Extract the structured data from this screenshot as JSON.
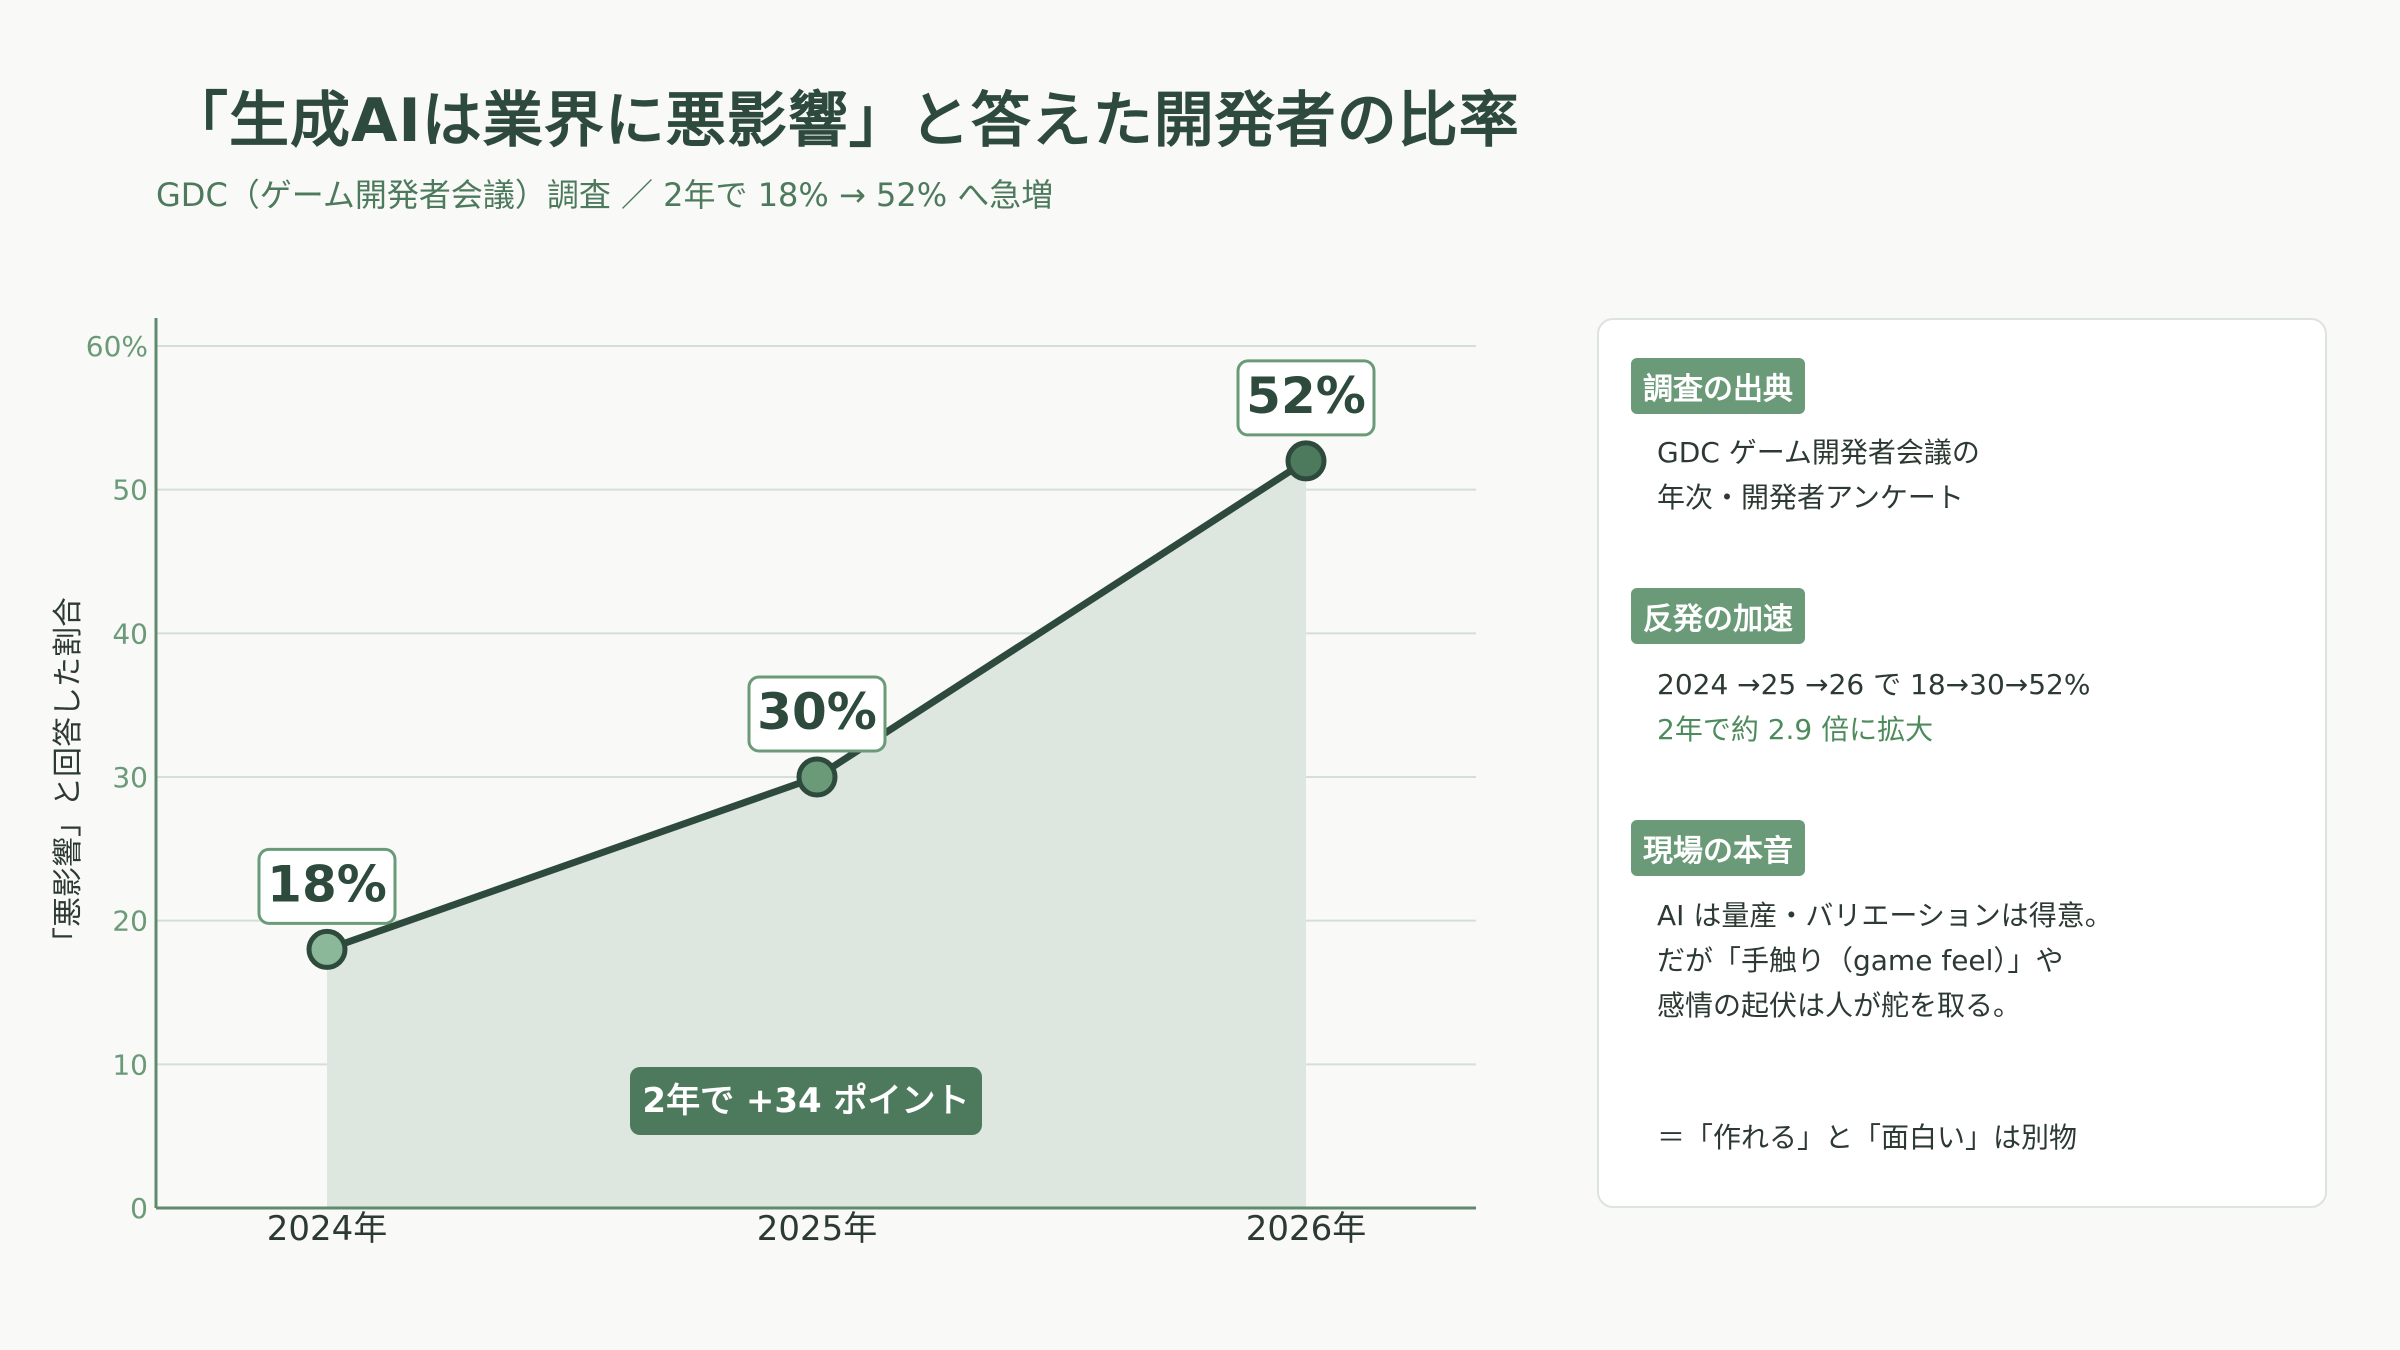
{
  "header": {
    "title": "「生成AIは業界に悪影響」と答えた開発者の比率",
    "subtitle": "GDC（ゲーム開発者会議）調査 ／ 2年で 18% → 52% へ急増"
  },
  "chart_data": {
    "type": "area",
    "categories": [
      "2024年",
      "2025年",
      "2026年"
    ],
    "values": [
      18,
      30,
      52
    ],
    "data_labels": [
      "18%",
      "30%",
      "52%"
    ],
    "ylabel": "「悪影響」と回答した割合",
    "ylim": [
      0,
      60
    ],
    "yticks": [
      {
        "value": 0,
        "label": "0"
      },
      {
        "value": 10,
        "label": "10"
      },
      {
        "value": 20,
        "label": "20"
      },
      {
        "value": 30,
        "label": "30"
      },
      {
        "value": 40,
        "label": "40"
      },
      {
        "value": 50,
        "label": "50"
      },
      {
        "value": 60,
        "label": "60%"
      }
    ],
    "grid": true,
    "annotation": "2年で +34 ポイント",
    "colors": {
      "line": "#2d4a3c",
      "area": "#dde6df",
      "grid": "#d4e0d7",
      "axis": "#5f8a6c",
      "tick_text": "#6a9a78",
      "marker_start": "#8ab898",
      "marker_mid": "#6a9a78",
      "marker_end": "#4d7a5c",
      "annotation_bg": "#4d7a5c"
    }
  },
  "panel": {
    "sections": [
      {
        "heading": "調査の出典",
        "lines": [
          "GDC ゲーム開発者会議の",
          "年次・開発者アンケート"
        ]
      },
      {
        "heading": "反発の加速",
        "lines": [
          "2024 →25 →26 で 18→30→52%"
        ],
        "highlight": "2年で約 2.9 倍に拡大"
      },
      {
        "heading": "現場の本音",
        "lines": [
          "AI は量産・バリエーションは得意。",
          "だが「手触り（game feel）」や",
          "感情の起伏は人が舵を取る。"
        ]
      }
    ],
    "footer": "＝「作れる」と「面白い」は別物"
  }
}
